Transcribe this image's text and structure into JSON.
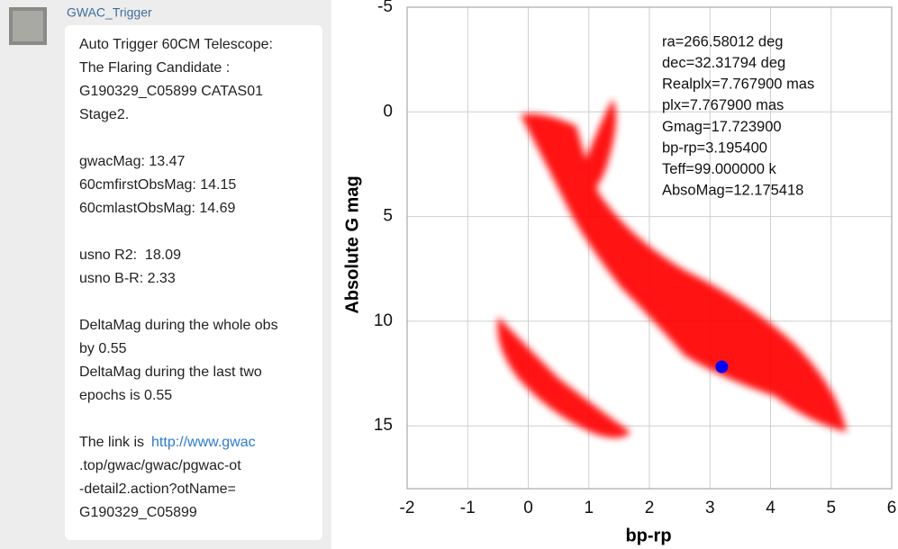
{
  "message": {
    "sender": "GWAC_Trigger",
    "paragraphs": [
      [
        "Auto Trigger 60CM Telescope:",
        "The Flaring Candidate :",
        "G190329_C05899 CATAS01",
        "Stage2."
      ],
      [
        "gwacMag: 13.47",
        "60cmfirstObsMag: 14.15",
        "60cmlastObsMag: 14.69"
      ],
      [
        "usno R2:  18.09",
        "usno B-R: 2.33"
      ],
      [
        "DeltaMag during the whole obs",
        "by 0.55",
        "DeltaMag during the last two",
        "epochs is 0.55"
      ]
    ],
    "link_prefix": "The link is",
    "link_lines": [
      "http://www.gwac",
      ".top/gwac/gwac/pgwac-ot",
      "-detail2.action?otName=",
      "G190329_C05899"
    ]
  },
  "chart_data": {
    "type": "scatter",
    "xlabel": "bp-rp",
    "ylabel": "Absolute G mag",
    "x": [
      3.1954
    ],
    "values": [
      12.175418
    ],
    "color": "#0000ff",
    "xlim": [
      -2,
      6
    ],
    "ylim": [
      -5,
      18
    ],
    "y_inverted": true,
    "xticks": [
      -2,
      -1,
      0,
      1,
      2,
      3,
      4,
      5,
      6
    ],
    "yticks": [
      -5,
      0,
      5,
      10,
      15
    ],
    "grid": true,
    "annotations": [
      "ra=266.58012 deg",
      "dec=32.31794 deg",
      "Realplx=7.767900 mas",
      "plx=7.767900 mas",
      "Gmag=17.723900",
      "bp-rp=3.195400",
      "Teff=99.000000 k",
      "AbsoMag=12.175418"
    ]
  }
}
